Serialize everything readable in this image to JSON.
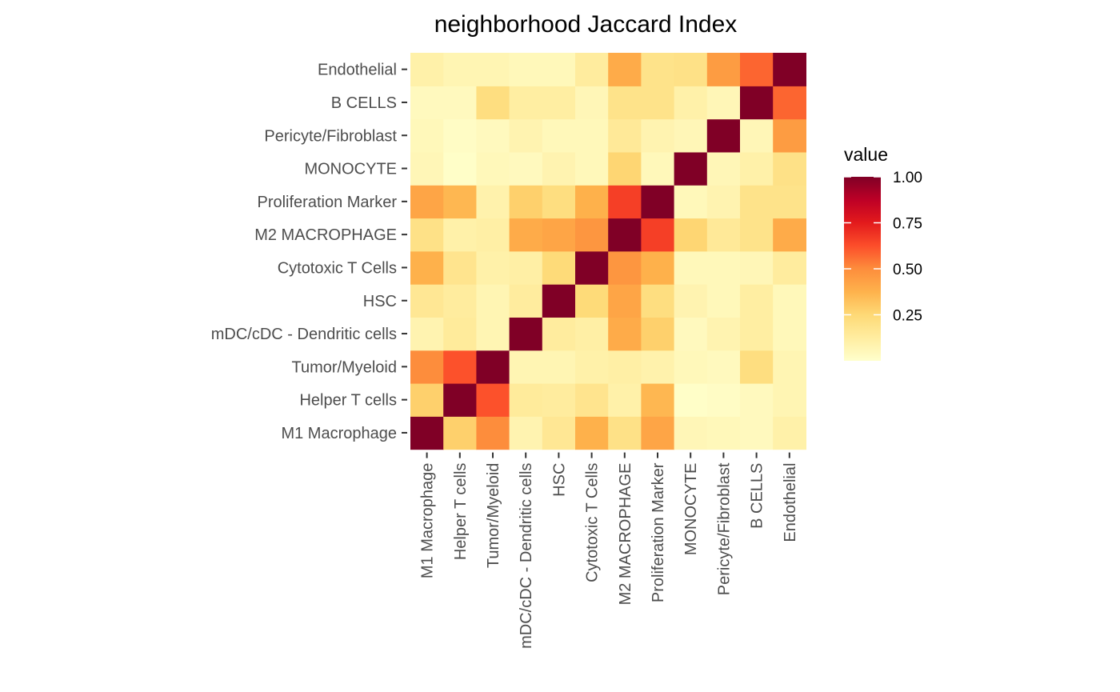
{
  "chart_data": {
    "type": "heatmap",
    "title": "neighborhood Jaccard Index",
    "x_categories": [
      "M1 Macrophage",
      "Helper T cells",
      "Tumor/Myeloid",
      "mDC/cDC - Dendritic cells",
      "HSC",
      "Cytotoxic T Cells",
      "M2 MACROPHAGE",
      "Proliferation Marker",
      "MONOCYTE",
      "Pericyte/Fibroblast",
      "B CELLS",
      "Endothelial"
    ],
    "y_categories": [
      "M1 Macrophage",
      "Helper T cells",
      "Tumor/Myeloid",
      "mDC/cDC - Dendritic cells",
      "HSC",
      "Cytotoxic T Cells",
      "M2 MACROPHAGE",
      "Proliferation Marker",
      "MONOCYTE",
      "Pericyte/Fibroblast",
      "B CELLS",
      "Endothelial"
    ],
    "matrix": [
      [
        1.0,
        0.28,
        0.5,
        0.08,
        0.16,
        0.38,
        0.2,
        0.42,
        0.06,
        0.05,
        0.04,
        0.1
      ],
      [
        0.28,
        1.0,
        0.62,
        0.14,
        0.13,
        0.18,
        0.1,
        0.36,
        0.01,
        0.02,
        0.04,
        0.07
      ],
      [
        0.5,
        0.62,
        1.0,
        0.07,
        0.07,
        0.1,
        0.11,
        0.09,
        0.05,
        0.04,
        0.22,
        0.07
      ],
      [
        0.08,
        0.14,
        0.07,
        1.0,
        0.13,
        0.11,
        0.4,
        0.28,
        0.04,
        0.08,
        0.12,
        0.05
      ],
      [
        0.16,
        0.13,
        0.07,
        0.13,
        1.0,
        0.24,
        0.42,
        0.22,
        0.08,
        0.05,
        0.12,
        0.05
      ],
      [
        0.38,
        0.18,
        0.1,
        0.11,
        0.24,
        1.0,
        0.47,
        0.38,
        0.05,
        0.05,
        0.06,
        0.13
      ],
      [
        0.2,
        0.1,
        0.11,
        0.4,
        0.42,
        0.47,
        1.0,
        0.66,
        0.26,
        0.15,
        0.19,
        0.4
      ],
      [
        0.42,
        0.36,
        0.09,
        0.28,
        0.22,
        0.38,
        0.66,
        1.0,
        0.05,
        0.08,
        0.19,
        0.19
      ],
      [
        0.06,
        0.01,
        0.05,
        0.04,
        0.08,
        0.05,
        0.26,
        0.05,
        1.0,
        0.06,
        0.1,
        0.2
      ],
      [
        0.05,
        0.02,
        0.04,
        0.08,
        0.05,
        0.05,
        0.15,
        0.08,
        0.06,
        1.0,
        0.06,
        0.45
      ],
      [
        0.04,
        0.04,
        0.22,
        0.12,
        0.12,
        0.06,
        0.19,
        0.19,
        0.1,
        0.06,
        1.0,
        0.58
      ],
      [
        0.1,
        0.07,
        0.07,
        0.05,
        0.05,
        0.13,
        0.4,
        0.19,
        0.2,
        0.45,
        0.58,
        1.0
      ]
    ],
    "legend": {
      "title": "value",
      "ticks": [
        1.0,
        0.75,
        0.5,
        0.25
      ],
      "tick_labels": [
        "1.00",
        "0.75",
        "0.50",
        "0.25"
      ],
      "range": [
        0,
        1.0
      ],
      "palette": [
        "#ffffcc",
        "#ffeda0",
        "#fed976",
        "#feb24c",
        "#fd8d3c",
        "#fc4e2a",
        "#e31a1c",
        "#bd0026",
        "#800026"
      ]
    }
  }
}
